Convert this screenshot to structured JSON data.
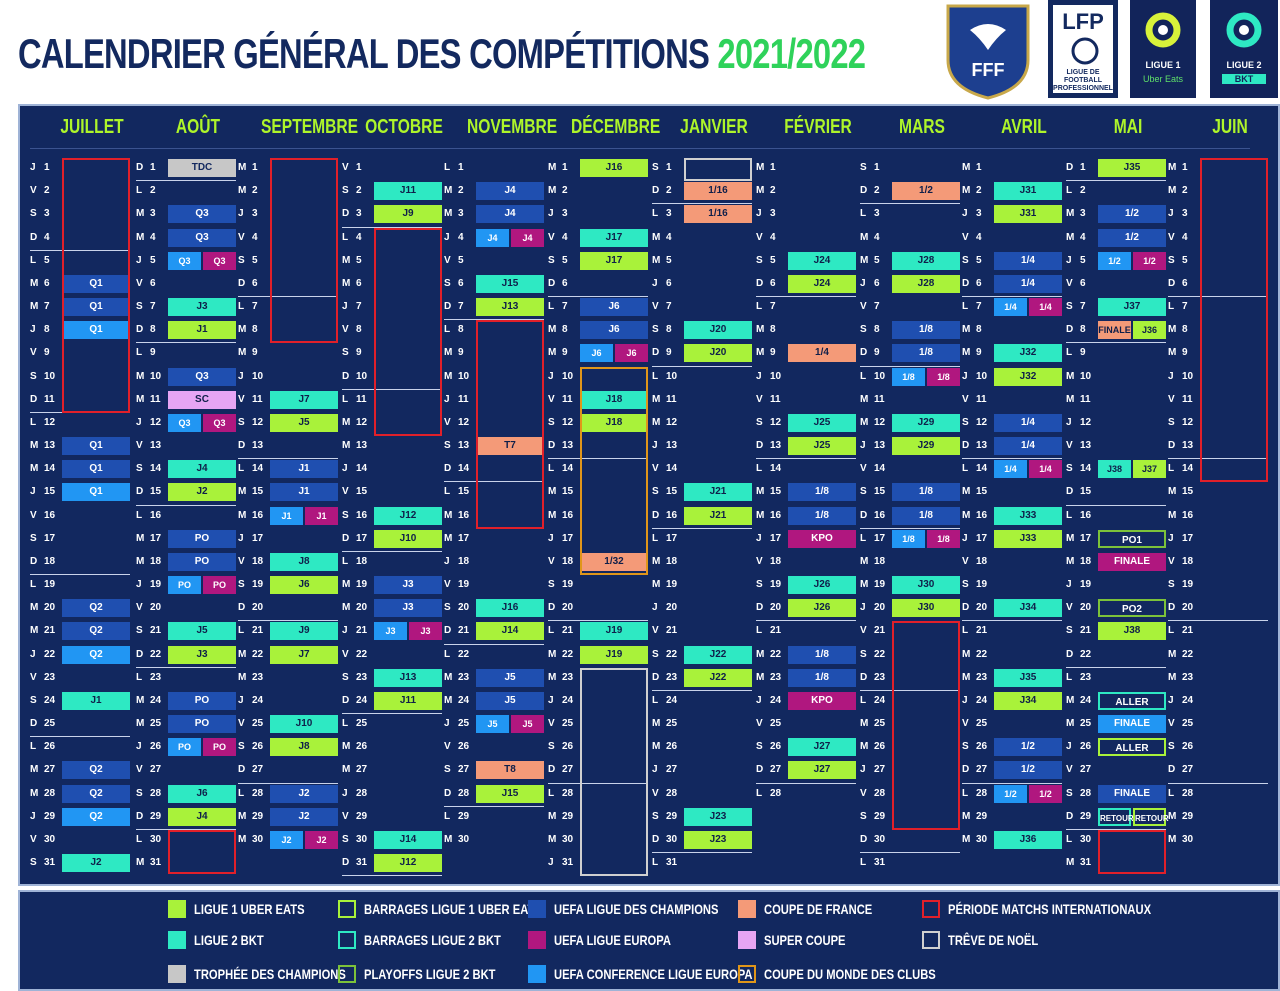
{
  "header": {
    "title": "CALENDRIER GÉNÉRAL DES COMPÉTITIONS",
    "season": "2021/2022"
  },
  "logos": {
    "fff": "FFF",
    "lfp_top": "LFP",
    "lfp_bottom": "LIGUE DE FOOTBALL PROFESSIONNEL",
    "l1_line1": "LIGUE 1",
    "l1_line2": "Uber Eats",
    "l2_line1": "LIGUE 2",
    "l2_line2": "BKT"
  },
  "colors": {
    "l1": "#a9f23a",
    "l2": "#2ee9c3",
    "tdc": "#c7c7c7",
    "ucl": "#1f4fb0",
    "uel": "#b0177f",
    "uecl": "#2196f3",
    "cdf": "#f49a78",
    "sc": "#e6a5f4",
    "intl": "#e0202a",
    "noel": "#d0d0d0",
    "cdm": "#e0961a"
  },
  "months": [
    "JUILLET",
    "AOÛT",
    "SEPTEMBRE",
    "OCTOBRE",
    "NOVEMBRE",
    "DÉCEMBRE",
    "JANVIER",
    "FÉVRIER",
    "MARS",
    "AVRIL",
    "MAI",
    "JUIN"
  ],
  "calendar": {
    "starts": [
      "J",
      "D",
      "M",
      "V",
      "L",
      "M",
      "S",
      "M",
      "S",
      "M",
      "D",
      "M"
    ],
    "lengths": [
      31,
      31,
      30,
      31,
      30,
      31,
      31,
      28,
      31,
      30,
      31,
      30
    ]
  },
  "events": [
    {
      "m": 1,
      "d": 1,
      "t": "TDC",
      "c": "tdc"
    },
    {
      "m": 1,
      "d": 3,
      "t": "Q3",
      "c": "ucl"
    },
    {
      "m": 1,
      "d": 4,
      "t": "Q3",
      "c": "ucl"
    },
    {
      "m": 1,
      "d": 5,
      "t": "Q3",
      "c": "uecl",
      "h": "L"
    },
    {
      "m": 1,
      "d": 5,
      "t": "Q3",
      "c": "uel",
      "h": "R"
    },
    {
      "m": 1,
      "d": 7,
      "t": "J3",
      "c": "l2"
    },
    {
      "m": 1,
      "d": 8,
      "t": "J1",
      "c": "l1"
    },
    {
      "m": 1,
      "d": 10,
      "t": "Q3",
      "c": "ucl"
    },
    {
      "m": 1,
      "d": 11,
      "t": "SC",
      "c": "sc"
    },
    {
      "m": 1,
      "d": 12,
      "t": "Q3",
      "c": "uecl",
      "h": "L"
    },
    {
      "m": 1,
      "d": 12,
      "t": "Q3",
      "c": "uel",
      "h": "R"
    },
    {
      "m": 1,
      "d": 14,
      "t": "J4",
      "c": "l2"
    },
    {
      "m": 1,
      "d": 15,
      "t": "J2",
      "c": "l1"
    },
    {
      "m": 1,
      "d": 17,
      "t": "PO",
      "c": "ucl"
    },
    {
      "m": 1,
      "d": 18,
      "t": "PO",
      "c": "ucl"
    },
    {
      "m": 1,
      "d": 19,
      "t": "PO",
      "c": "uecl",
      "h": "L"
    },
    {
      "m": 1,
      "d": 19,
      "t": "PO",
      "c": "uel",
      "h": "R"
    },
    {
      "m": 1,
      "d": 21,
      "t": "J5",
      "c": "l2"
    },
    {
      "m": 1,
      "d": 22,
      "t": "J3",
      "c": "l1"
    },
    {
      "m": 1,
      "d": 24,
      "t": "PO",
      "c": "ucl"
    },
    {
      "m": 1,
      "d": 25,
      "t": "PO",
      "c": "ucl"
    },
    {
      "m": 1,
      "d": 26,
      "t": "PO",
      "c": "uecl",
      "h": "L"
    },
    {
      "m": 1,
      "d": 26,
      "t": "PO",
      "c": "uel",
      "h": "R"
    },
    {
      "m": 1,
      "d": 28,
      "t": "J6",
      "c": "l2"
    },
    {
      "m": 1,
      "d": 29,
      "t": "J4",
      "c": "l1"
    },
    {
      "m": 0,
      "d": 6,
      "t": "Q1",
      "c": "ucl"
    },
    {
      "m": 0,
      "d": 7,
      "t": "Q1",
      "c": "ucl"
    },
    {
      "m": 0,
      "d": 8,
      "t": "Q1",
      "c": "uecl"
    },
    {
      "m": 0,
      "d": 13,
      "t": "Q1",
      "c": "ucl"
    },
    {
      "m": 0,
      "d": 14,
      "t": "Q1",
      "c": "ucl"
    },
    {
      "m": 0,
      "d": 15,
      "t": "Q1",
      "c": "uecl"
    },
    {
      "m": 0,
      "d": 20,
      "t": "Q2",
      "c": "ucl"
    },
    {
      "m": 0,
      "d": 21,
      "t": "Q2",
      "c": "ucl"
    },
    {
      "m": 0,
      "d": 22,
      "t": "Q2",
      "c": "uecl"
    },
    {
      "m": 0,
      "d": 24,
      "t": "J1",
      "c": "l2"
    },
    {
      "m": 0,
      "d": 27,
      "t": "Q2",
      "c": "ucl"
    },
    {
      "m": 0,
      "d": 28,
      "t": "Q2",
      "c": "ucl"
    },
    {
      "m": 0,
      "d": 29,
      "t": "Q2",
      "c": "uecl"
    },
    {
      "m": 0,
      "d": 31,
      "t": "J2",
      "c": "l2"
    },
    {
      "m": 2,
      "d": 11,
      "t": "J7",
      "c": "l2"
    },
    {
      "m": 2,
      "d": 12,
      "t": "J5",
      "c": "l1"
    },
    {
      "m": 2,
      "d": 14,
      "t": "J1",
      "c": "ucl"
    },
    {
      "m": 2,
      "d": 15,
      "t": "J1",
      "c": "ucl"
    },
    {
      "m": 2,
      "d": 16,
      "t": "J1",
      "c": "uecl",
      "h": "L"
    },
    {
      "m": 2,
      "d": 16,
      "t": "J1",
      "c": "uel",
      "h": "R"
    },
    {
      "m": 2,
      "d": 18,
      "t": "J8",
      "c": "l2"
    },
    {
      "m": 2,
      "d": 19,
      "t": "J6",
      "c": "l1"
    },
    {
      "m": 2,
      "d": 21,
      "t": "J9",
      "c": "l2"
    },
    {
      "m": 2,
      "d": 22,
      "t": "J7",
      "c": "l1"
    },
    {
      "m": 2,
      "d": 25,
      "t": "J10",
      "c": "l2"
    },
    {
      "m": 2,
      "d": 26,
      "t": "J8",
      "c": "l1"
    },
    {
      "m": 2,
      "d": 28,
      "t": "J2",
      "c": "ucl"
    },
    {
      "m": 2,
      "d": 29,
      "t": "J2",
      "c": "ucl"
    },
    {
      "m": 2,
      "d": 30,
      "t": "J2",
      "c": "uecl",
      "h": "L"
    },
    {
      "m": 2,
      "d": 30,
      "t": "J2",
      "c": "uel",
      "h": "R"
    },
    {
      "m": 3,
      "d": 2,
      "t": "J11",
      "c": "l2"
    },
    {
      "m": 3,
      "d": 3,
      "t": "J9",
      "c": "l1"
    },
    {
      "m": 3,
      "d": 16,
      "t": "J12",
      "c": "l2"
    },
    {
      "m": 3,
      "d": 17,
      "t": "J10",
      "c": "l1"
    },
    {
      "m": 3,
      "d": 19,
      "t": "J3",
      "c": "ucl"
    },
    {
      "m": 3,
      "d": 20,
      "t": "J3",
      "c": "ucl"
    },
    {
      "m": 3,
      "d": 21,
      "t": "J3",
      "c": "uecl",
      "h": "L"
    },
    {
      "m": 3,
      "d": 21,
      "t": "J3",
      "c": "uel",
      "h": "R"
    },
    {
      "m": 3,
      "d": 23,
      "t": "J13",
      "c": "l2"
    },
    {
      "m": 3,
      "d": 24,
      "t": "J11",
      "c": "l1"
    },
    {
      "m": 3,
      "d": 30,
      "t": "J14",
      "c": "l2"
    },
    {
      "m": 3,
      "d": 31,
      "t": "J12",
      "c": "l1"
    },
    {
      "m": 4,
      "d": 2,
      "t": "J4",
      "c": "ucl"
    },
    {
      "m": 4,
      "d": 3,
      "t": "J4",
      "c": "ucl"
    },
    {
      "m": 4,
      "d": 4,
      "t": "J4",
      "c": "uecl",
      "h": "L"
    },
    {
      "m": 4,
      "d": 4,
      "t": "J4",
      "c": "uel",
      "h": "R"
    },
    {
      "m": 4,
      "d": 6,
      "t": "J15",
      "c": "l2"
    },
    {
      "m": 4,
      "d": 7,
      "t": "J13",
      "c": "l1"
    },
    {
      "m": 4,
      "d": 13,
      "t": "T7",
      "c": "cdf"
    },
    {
      "m": 4,
      "d": 20,
      "t": "J16",
      "c": "l2"
    },
    {
      "m": 4,
      "d": 21,
      "t": "J14",
      "c": "l1"
    },
    {
      "m": 4,
      "d": 23,
      "t": "J5",
      "c": "ucl"
    },
    {
      "m": 4,
      "d": 24,
      "t": "J5",
      "c": "ucl"
    },
    {
      "m": 4,
      "d": 25,
      "t": "J5",
      "c": "uecl",
      "h": "L"
    },
    {
      "m": 4,
      "d": 25,
      "t": "J5",
      "c": "uel",
      "h": "R"
    },
    {
      "m": 4,
      "d": 27,
      "t": "T8",
      "c": "cdf"
    },
    {
      "m": 4,
      "d": 28,
      "t": "J15",
      "c": "l1"
    },
    {
      "m": 5,
      "d": 1,
      "t": "J16",
      "c": "l1"
    },
    {
      "m": 5,
      "d": 4,
      "t": "J17",
      "c": "l2"
    },
    {
      "m": 5,
      "d": 5,
      "t": "J17",
      "c": "l1"
    },
    {
      "m": 5,
      "d": 7,
      "t": "J6",
      "c": "ucl"
    },
    {
      "m": 5,
      "d": 8,
      "t": "J6",
      "c": "ucl"
    },
    {
      "m": 5,
      "d": 9,
      "t": "J6",
      "c": "uecl",
      "h": "L"
    },
    {
      "m": 5,
      "d": 9,
      "t": "J6",
      "c": "uel",
      "h": "R"
    },
    {
      "m": 5,
      "d": 11,
      "t": "J18",
      "c": "l2"
    },
    {
      "m": 5,
      "d": 12,
      "t": "J18",
      "c": "l1"
    },
    {
      "m": 5,
      "d": 18,
      "t": "1/32",
      "c": "cdf"
    },
    {
      "m": 5,
      "d": 21,
      "t": "J19",
      "c": "l2"
    },
    {
      "m": 5,
      "d": 22,
      "t": "J19",
      "c": "l1"
    },
    {
      "m": 6,
      "d": 2,
      "t": "1/16",
      "c": "cdf"
    },
    {
      "m": 6,
      "d": 3,
      "t": "1/16",
      "c": "cdf"
    },
    {
      "m": 6,
      "d": 8,
      "t": "J20",
      "c": "l2"
    },
    {
      "m": 6,
      "d": 9,
      "t": "J20",
      "c": "l1"
    },
    {
      "m": 6,
      "d": 15,
      "t": "J21",
      "c": "l2"
    },
    {
      "m": 6,
      "d": 16,
      "t": "J21",
      "c": "l1"
    },
    {
      "m": 6,
      "d": 22,
      "t": "J22",
      "c": "l2"
    },
    {
      "m": 6,
      "d": 23,
      "t": "J22",
      "c": "l1"
    },
    {
      "m": 6,
      "d": 29,
      "t": "J23",
      "c": "l2"
    },
    {
      "m": 6,
      "d": 30,
      "t": "J23",
      "c": "l1"
    },
    {
      "m": 7,
      "d": 5,
      "t": "J24",
      "c": "l2"
    },
    {
      "m": 7,
      "d": 6,
      "t": "J24",
      "c": "l1"
    },
    {
      "m": 7,
      "d": 9,
      "t": "1/4",
      "c": "cdf"
    },
    {
      "m": 7,
      "d": 12,
      "t": "J25",
      "c": "l2"
    },
    {
      "m": 7,
      "d": 13,
      "t": "J25",
      "c": "l1"
    },
    {
      "m": 7,
      "d": 15,
      "t": "1/8",
      "c": "ucl"
    },
    {
      "m": 7,
      "d": 16,
      "t": "1/8",
      "c": "ucl"
    },
    {
      "m": 7,
      "d": 17,
      "t": "KPO",
      "c": "uel"
    },
    {
      "m": 7,
      "d": 19,
      "t": "J26",
      "c": "l2"
    },
    {
      "m": 7,
      "d": 20,
      "t": "J26",
      "c": "l1"
    },
    {
      "m": 7,
      "d": 22,
      "t": "1/8",
      "c": "ucl"
    },
    {
      "m": 7,
      "d": 23,
      "t": "1/8",
      "c": "ucl"
    },
    {
      "m": 7,
      "d": 24,
      "t": "KPO",
      "c": "uel"
    },
    {
      "m": 7,
      "d": 26,
      "t": "J27",
      "c": "l2"
    },
    {
      "m": 7,
      "d": 27,
      "t": "J27",
      "c": "l1"
    },
    {
      "m": 8,
      "d": 2,
      "t": "1/2",
      "c": "cdf"
    },
    {
      "m": 8,
      "d": 5,
      "t": "J28",
      "c": "l2"
    },
    {
      "m": 8,
      "d": 6,
      "t": "J28",
      "c": "l1"
    },
    {
      "m": 8,
      "d": 8,
      "t": "1/8",
      "c": "ucl"
    },
    {
      "m": 8,
      "d": 9,
      "t": "1/8",
      "c": "ucl"
    },
    {
      "m": 8,
      "d": 10,
      "t": "1/8",
      "c": "uecl",
      "h": "L"
    },
    {
      "m": 8,
      "d": 10,
      "t": "1/8",
      "c": "uel",
      "h": "R"
    },
    {
      "m": 8,
      "d": 12,
      "t": "J29",
      "c": "l2"
    },
    {
      "m": 8,
      "d": 13,
      "t": "J29",
      "c": "l1"
    },
    {
      "m": 8,
      "d": 15,
      "t": "1/8",
      "c": "ucl"
    },
    {
      "m": 8,
      "d": 16,
      "t": "1/8",
      "c": "ucl"
    },
    {
      "m": 8,
      "d": 17,
      "t": "1/8",
      "c": "uecl",
      "h": "L"
    },
    {
      "m": 8,
      "d": 17,
      "t": "1/8",
      "c": "uel",
      "h": "R"
    },
    {
      "m": 8,
      "d": 19,
      "t": "J30",
      "c": "l2"
    },
    {
      "m": 8,
      "d": 20,
      "t": "J30",
      "c": "l1"
    },
    {
      "m": 9,
      "d": 2,
      "t": "J31",
      "c": "l2"
    },
    {
      "m": 9,
      "d": 3,
      "t": "J31",
      "c": "l1"
    },
    {
      "m": 9,
      "d": 5,
      "t": "1/4",
      "c": "ucl"
    },
    {
      "m": 9,
      "d": 6,
      "t": "1/4",
      "c": "ucl"
    },
    {
      "m": 9,
      "d": 7,
      "t": "1/4",
      "c": "uecl",
      "h": "L"
    },
    {
      "m": 9,
      "d": 7,
      "t": "1/4",
      "c": "uel",
      "h": "R"
    },
    {
      "m": 9,
      "d": 9,
      "t": "J32",
      "c": "l2"
    },
    {
      "m": 9,
      "d": 10,
      "t": "J32",
      "c": "l1"
    },
    {
      "m": 9,
      "d": 12,
      "t": "1/4",
      "c": "ucl"
    },
    {
      "m": 9,
      "d": 13,
      "t": "1/4",
      "c": "ucl"
    },
    {
      "m": 9,
      "d": 14,
      "t": "1/4",
      "c": "uecl",
      "h": "L"
    },
    {
      "m": 9,
      "d": 14,
      "t": "1/4",
      "c": "uel",
      "h": "R"
    },
    {
      "m": 9,
      "d": 16,
      "t": "J33",
      "c": "l2"
    },
    {
      "m": 9,
      "d": 17,
      "t": "J33",
      "c": "l1"
    },
    {
      "m": 9,
      "d": 20,
      "t": "J34",
      "c": "l2"
    },
    {
      "m": 9,
      "d": 23,
      "t": "J35",
      "c": "l2"
    },
    {
      "m": 9,
      "d": 24,
      "t": "J34",
      "c": "l1"
    },
    {
      "m": 9,
      "d": 26,
      "t": "1/2",
      "c": "ucl"
    },
    {
      "m": 9,
      "d": 27,
      "t": "1/2",
      "c": "ucl"
    },
    {
      "m": 9,
      "d": 28,
      "t": "1/2",
      "c": "uecl",
      "h": "L"
    },
    {
      "m": 9,
      "d": 28,
      "t": "1/2",
      "c": "uel",
      "h": "R"
    },
    {
      "m": 9,
      "d": 30,
      "t": "J36",
      "c": "l2"
    },
    {
      "m": 10,
      "d": 1,
      "t": "J35",
      "c": "l1"
    },
    {
      "m": 10,
      "d": 3,
      "t": "1/2",
      "c": "ucl"
    },
    {
      "m": 10,
      "d": 4,
      "t": "1/2",
      "c": "ucl"
    },
    {
      "m": 10,
      "d": 5,
      "t": "1/2",
      "c": "uecl",
      "h": "L"
    },
    {
      "m": 10,
      "d": 5,
      "t": "1/2",
      "c": "uel",
      "h": "R"
    },
    {
      "m": 10,
      "d": 7,
      "t": "J37",
      "c": "l2"
    },
    {
      "m": 10,
      "d": 8,
      "t": "FINALE",
      "c": "cdf",
      "h": "L"
    },
    {
      "m": 10,
      "d": 8,
      "t": "J36",
      "c": "l1",
      "h": "R"
    },
    {
      "m": 10,
      "d": 14,
      "t": "J38",
      "c": "l2",
      "h": "L"
    },
    {
      "m": 10,
      "d": 14,
      "t": "J37",
      "c": "l1",
      "h": "R"
    },
    {
      "m": 10,
      "d": 17,
      "t": "PO1",
      "c": "pol2"
    },
    {
      "m": 10,
      "d": 18,
      "t": "FINALE",
      "c": "uel"
    },
    {
      "m": 10,
      "d": 20,
      "t": "PO2",
      "c": "pol2"
    },
    {
      "m": 10,
      "d": 21,
      "t": "J38",
      "c": "l1"
    },
    {
      "m": 10,
      "d": 24,
      "t": "ALLER",
      "c": "barl2"
    },
    {
      "m": 10,
      "d": 25,
      "t": "FINALE",
      "c": "uecl"
    },
    {
      "m": 10,
      "d": 26,
      "t": "ALLER",
      "c": "barl1"
    },
    {
      "m": 10,
      "d": 28,
      "t": "FINALE",
      "c": "ucl"
    },
    {
      "m": 10,
      "d": 29,
      "t": "RETOUR",
      "c": "barl2",
      "h": "L"
    },
    {
      "m": 10,
      "d": 29,
      "t": "RETOUR",
      "c": "barl1",
      "h": "R"
    }
  ],
  "boxes": [
    {
      "m": 0,
      "from": 1,
      "to": 11,
      "c": "intl"
    },
    {
      "m": 2,
      "from": 1,
      "to": 8,
      "c": "intl"
    },
    {
      "m": 3,
      "from": 4,
      "to": 12,
      "c": "intl"
    },
    {
      "m": 4,
      "from": 8,
      "to": 16,
      "c": "intl"
    },
    {
      "m": 8,
      "from": 21,
      "to": 29,
      "c": "intl"
    },
    {
      "m": 11,
      "from": 1,
      "to": 14,
      "c": "intl"
    },
    {
      "m": 1,
      "from": 30,
      "to": 31,
      "c": "intl"
    },
    {
      "m": 10,
      "from": 30,
      "to": 31,
      "c": "intl"
    },
    {
      "m": 5,
      "from": 10,
      "to": 18,
      "c": "cdm"
    },
    {
      "m": 5,
      "from": 23,
      "to": 31,
      "c": "noel"
    },
    {
      "m": 6,
      "from": 1,
      "to": 1,
      "c": "noel"
    }
  ],
  "legend": [
    {
      "label": "LIGUE 1 UBER EATS",
      "c": "l1",
      "style": "fill"
    },
    {
      "label": "LIGUE 2 BKT",
      "c": "l2",
      "style": "fill"
    },
    {
      "label": "TROPHÉE DES CHAMPIONS",
      "c": "tdc",
      "style": "fill"
    },
    {
      "label": "BARRAGES LIGUE 1 UBER EATS",
      "c": "l1",
      "style": "outline"
    },
    {
      "label": "BARRAGES LIGUE 2 BKT",
      "c": "l2",
      "style": "outline"
    },
    {
      "label": "PLAYOFFS LIGUE 2 BKT",
      "c": "pol2",
      "style": "outline"
    },
    {
      "label": "UEFA LIGUE DES CHAMPIONS",
      "c": "ucl",
      "style": "fill"
    },
    {
      "label": "UEFA LIGUE EUROPA",
      "c": "uel",
      "style": "fill"
    },
    {
      "label": "UEFA CONFERENCE LIGUE EUROPA",
      "c": "uecl",
      "style": "fill"
    },
    {
      "label": "COUPE DE FRANCE",
      "c": "cdf",
      "style": "fill"
    },
    {
      "label": "SUPER COUPE",
      "c": "sc",
      "style": "fill"
    },
    {
      "label": "COUPE DU MONDE DES CLUBS",
      "c": "cdm",
      "style": "outline"
    },
    {
      "label": "PÉRIODE MATCHS INTERNATIONAUX",
      "c": "intl",
      "style": "outline"
    },
    {
      "label": "TRÊVE DE NOËL",
      "c": "noel",
      "style": "outline"
    }
  ]
}
